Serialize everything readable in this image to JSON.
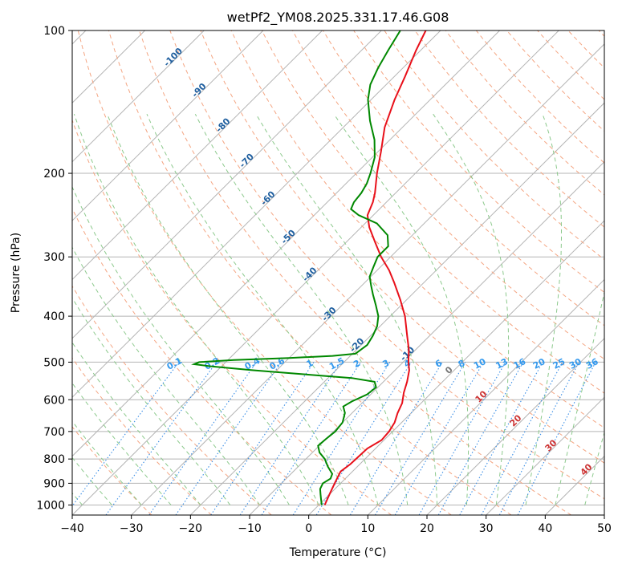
{
  "chart_data": {
    "type": "line",
    "chart_kind": "skew-T log-P diagram",
    "title": "wetPf2_YM08.2025.331.17.46.G08",
    "xlabel": "Temperature (°C)",
    "ylabel": "Pressure (hPa)",
    "xlim": [
      -40,
      50
    ],
    "ylim": [
      1050,
      100
    ],
    "y_scale": "log",
    "skew_deg_per_decade_ln": 35,
    "x_ticks": [
      -40,
      -30,
      -20,
      -10,
      0,
      10,
      20,
      30,
      40,
      50
    ],
    "y_ticks": [
      100,
      200,
      300,
      400,
      500,
      600,
      700,
      800,
      900,
      1000
    ],
    "grid": true,
    "series": [
      {
        "name": "",
        "color": "#e8101a",
        "points": [
          [
            1000,
            1.0
          ],
          [
            975,
            0.5
          ],
          [
            950,
            0.0
          ],
          [
            925,
            -0.5
          ],
          [
            900,
            -1.0
          ],
          [
            875,
            -1.5
          ],
          [
            850,
            -2.0
          ],
          [
            820,
            -1.6
          ],
          [
            790,
            -1.5
          ],
          [
            760,
            -1.4
          ],
          [
            730,
            -0.4
          ],
          [
            700,
            -0.6
          ],
          [
            670,
            -1.2
          ],
          [
            640,
            -2.3
          ],
          [
            610,
            -3.2
          ],
          [
            580,
            -4.7
          ],
          [
            550,
            -6.0
          ],
          [
            520,
            -7.6
          ],
          [
            500,
            -9.1
          ],
          [
            470,
            -11.2
          ],
          [
            440,
            -13.8
          ],
          [
            400,
            -17.5
          ],
          [
            370,
            -21.0
          ],
          [
            340,
            -25.0
          ],
          [
            320,
            -28.0
          ],
          [
            300,
            -31.6
          ],
          [
            280,
            -35.0
          ],
          [
            260,
            -38.6
          ],
          [
            245,
            -41.0
          ],
          [
            230,
            -42.3
          ],
          [
            220,
            -43.5
          ],
          [
            200,
            -46.5
          ],
          [
            180,
            -49.5
          ],
          [
            160,
            -53.0
          ],
          [
            140,
            -56.0
          ],
          [
            125,
            -58.2
          ],
          [
            110,
            -60.8
          ],
          [
            100,
            -62.5
          ]
        ]
      },
      {
        "name": "",
        "color": "#008800",
        "points": [
          [
            1000,
            0.5
          ],
          [
            975,
            -0.5
          ],
          [
            950,
            -1.5
          ],
          [
            925,
            -2.5
          ],
          [
            900,
            -3.0
          ],
          [
            880,
            -2.5
          ],
          [
            860,
            -3.0
          ],
          [
            830,
            -5.0
          ],
          [
            800,
            -6.8
          ],
          [
            775,
            -8.8
          ],
          [
            750,
            -10.2
          ],
          [
            725,
            -10.0
          ],
          [
            700,
            -9.7
          ],
          [
            670,
            -10.0
          ],
          [
            640,
            -11.2
          ],
          [
            620,
            -12.6
          ],
          [
            605,
            -12.0
          ],
          [
            585,
            -10.6
          ],
          [
            565,
            -10.3
          ],
          [
            550,
            -11.5
          ],
          [
            540,
            -16.0
          ],
          [
            530,
            -25.0
          ],
          [
            520,
            -34.0
          ],
          [
            510,
            -42.0
          ],
          [
            505,
            -45.0
          ],
          [
            500,
            -44.5
          ],
          [
            495,
            -39.0
          ],
          [
            490,
            -30.0
          ],
          [
            485,
            -23.0
          ],
          [
            480,
            -19.5
          ],
          [
            460,
            -19.0
          ],
          [
            440,
            -19.6
          ],
          [
            420,
            -20.5
          ],
          [
            400,
            -22.0
          ],
          [
            380,
            -24.2
          ],
          [
            360,
            -26.6
          ],
          [
            345,
            -28.4
          ],
          [
            330,
            -30.2
          ],
          [
            315,
            -31.2
          ],
          [
            300,
            -32.2
          ],
          [
            285,
            -32.2
          ],
          [
            270,
            -34.2
          ],
          [
            255,
            -38.0
          ],
          [
            245,
            -42.5
          ],
          [
            238,
            -44.8
          ],
          [
            230,
            -45.5
          ],
          [
            220,
            -45.8
          ],
          [
            210,
            -46.5
          ],
          [
            200,
            -47.6
          ],
          [
            185,
            -49.6
          ],
          [
            170,
            -52.6
          ],
          [
            155,
            -56.6
          ],
          [
            140,
            -60.5
          ],
          [
            130,
            -62.7
          ],
          [
            120,
            -64.2
          ],
          [
            110,
            -65.5
          ],
          [
            100,
            -66.8
          ]
        ]
      }
    ],
    "dry_adiabat_labels": [
      "-100",
      "-90",
      "-80",
      "-70",
      "-60",
      "-50",
      "-40",
      "-30",
      "-20",
      "-10"
    ],
    "moist_adiabat_labels": [
      "0",
      "10",
      "20",
      "30",
      "40"
    ],
    "mixing_ratio_labels": [
      "0.1",
      "0.2",
      "0.4",
      "0.6",
      "1",
      "1.5",
      "2",
      "3",
      "4",
      "6",
      "8",
      "10",
      "13",
      "16",
      "20",
      "25",
      "30",
      "36"
    ],
    "colors": {
      "dry_adiabat": "#f4a582",
      "moist_adiabat": "#8cc98c",
      "mixing_ratio": "#3a8ee6",
      "isotherm": "#b4b4b4",
      "isobar": "#b4b4b4"
    }
  }
}
